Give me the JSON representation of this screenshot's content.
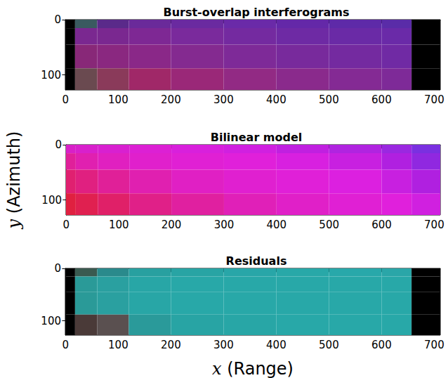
{
  "chart_data": [
    {
      "type": "image",
      "title": "Burst-overlap interferograms",
      "xlim": [
        -0.5,
        711.5
      ],
      "ylim": [
        127.5,
        -0.5
      ],
      "xticks": [
        0,
        100,
        200,
        300,
        400,
        500,
        600,
        700
      ],
      "yticks": [
        0,
        100
      ],
      "x_edges": [
        -0.5,
        18,
        60,
        120,
        200,
        300,
        400,
        500,
        600,
        657,
        711.5
      ],
      "y_edges": [
        -0.5,
        15,
        45,
        88,
        127.5
      ],
      "colors": [
        [
          "#000000",
          "#3a5a60",
          "#5a2a8a",
          "#6a2a9a",
          "#6a2aa0",
          "#6a2aa8",
          "#6428a8",
          "#5e2aa8",
          "#5a2ca8",
          "#000000"
        ],
        [
          "#000000",
          "#7a2890",
          "#7a2890",
          "#7e2894",
          "#7a2a9c",
          "#742aa0",
          "#6e2aa4",
          "#6a2aa6",
          "#6a2aa8",
          "#000000"
        ],
        [
          "#000000",
          "#882878",
          "#8a2880",
          "#8a2888",
          "#842a90",
          "#7e2a98",
          "#782a9c",
          "#742aa0",
          "#702aa4",
          "#000000"
        ],
        [
          "#000000",
          "#6a4a50",
          "#8a3a5a",
          "#a02868",
          "#9a2878",
          "#922a84",
          "#8a2a8c",
          "#842a94",
          "#7e2a98",
          "#000000"
        ]
      ]
    },
    {
      "type": "image",
      "title": "Bilinear model",
      "xlim": [
        -0.5,
        711.5
      ],
      "ylim": [
        127.5,
        -0.5
      ],
      "xticks": [
        0,
        100,
        200,
        300,
        400,
        500,
        600,
        700
      ],
      "yticks": [
        0,
        100
      ],
      "ylabel": "y (Azimuth)",
      "x_edges": [
        -0.5,
        18,
        60,
        120,
        200,
        300,
        400,
        500,
        600,
        657,
        711.5
      ],
      "y_edges": [
        -0.5,
        15,
        45,
        88,
        127.5
      ],
      "colors": [
        [
          "#d820c8",
          "#d820cc",
          "#d820d0",
          "#dc20d4",
          "#d820dc",
          "#d020e0",
          "#c020e0",
          "#b024e0",
          "#9a28e0",
          "#7a30e0"
        ],
        [
          "#e0209a",
          "#e020b0",
          "#e020c0",
          "#e020cc",
          "#e020d4",
          "#e020da",
          "#d820e0",
          "#c820e0",
          "#b020e0",
          "#9028e0"
        ],
        [
          "#e02070",
          "#e02080",
          "#e02098",
          "#e020b0",
          "#e020c4",
          "#e020d0",
          "#e020d8",
          "#dc20e0",
          "#c820e0",
          "#b020e0"
        ],
        [
          "#e02040",
          "#e02050",
          "#e02068",
          "#e02088",
          "#e020a0",
          "#e020b8",
          "#e020c8",
          "#e020d4",
          "#e020dc",
          "#d020e0"
        ]
      ]
    },
    {
      "type": "image",
      "title": "Residuals",
      "xlim": [
        -0.5,
        711.5
      ],
      "ylim": [
        127.5,
        -0.5
      ],
      "xticks": [
        0,
        100,
        200,
        300,
        400,
        500,
        600,
        700
      ],
      "yticks": [
        0,
        100
      ],
      "xlabel": "x (Range)",
      "x_edges": [
        -0.5,
        18,
        60,
        120,
        200,
        300,
        400,
        500,
        600,
        657,
        711.5
      ],
      "y_edges": [
        -0.5,
        15,
        45,
        88,
        127.5
      ],
      "colors": [
        [
          "#000000",
          "#3a5a50",
          "#2a8a8c",
          "#28a0a0",
          "#28a4a4",
          "#28a6a8",
          "#28a8a8",
          "#28a8aa",
          "#2aa6a8",
          "#000000"
        ],
        [
          "#000000",
          "#2a9a98",
          "#2aa0a0",
          "#28a6a6",
          "#28a8a8",
          "#28a8a8",
          "#28a8a8",
          "#28a8a8",
          "#28a8a8",
          "#000000"
        ],
        [
          "#000000",
          "#2a9a98",
          "#2aa0a0",
          "#28a6a6",
          "#28a8a8",
          "#28a8a8",
          "#28a8a8",
          "#28a8a8",
          "#28a8a8",
          "#000000"
        ],
        [
          "#000000",
          "#4a3a38",
          "#5a5050",
          "#2a9a9a",
          "#28a4a4",
          "#28a6a6",
          "#28a8a8",
          "#28a8a8",
          "#28a8a8",
          "#000000"
        ]
      ]
    }
  ]
}
